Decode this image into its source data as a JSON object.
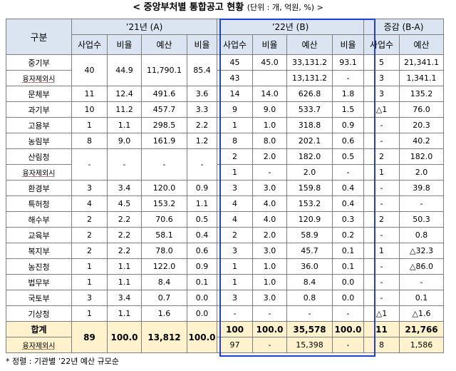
{
  "title": "< 중앙부처별 통합공고 현황",
  "unit": "(단위 : 개, 억원, %) >",
  "headers": {
    "category": "구분",
    "y21": "’21년 (A)",
    "y22": "’22년 (B)",
    "change": "증감 (B-A)",
    "count": "사업수",
    "ratio": "비율",
    "budget": "예산"
  },
  "rows": [
    {
      "name": "중기부",
      "c21": "40",
      "r21": "44.9",
      "b21": "11,790.1",
      "br21": "85.4",
      "c22": "45",
      "r22": "45.0",
      "b22": "33,131.2",
      "br22": "93.1",
      "dc": "5",
      "db": "21,341.1"
    },
    {
      "name": "융자제외시",
      "c22": "43",
      "r22": "",
      "b22": "13,131.2",
      "br22": "-",
      "dc": "3",
      "db": "1,341.1"
    },
    {
      "name": "문체부",
      "c21": "11",
      "r21": "12.4",
      "b21": "491.6",
      "br21": "3.6",
      "c22": "14",
      "r22": "14.0",
      "b22": "626.8",
      "br22": "1.8",
      "dc": "3",
      "db": "135.2"
    },
    {
      "name": "과기부",
      "c21": "10",
      "r21": "11.2",
      "b21": "457.7",
      "br21": "3.3",
      "c22": "9",
      "r22": "9.0",
      "b22": "533.7",
      "br22": "1.5",
      "dc": "△1",
      "db": "76.0"
    },
    {
      "name": "고용부",
      "c21": "1",
      "r21": "1.1",
      "b21": "298.5",
      "br21": "2.2",
      "c22": "1",
      "r22": "1.0",
      "b22": "318.8",
      "br22": "0.9",
      "dc": "-",
      "db": "20.3"
    },
    {
      "name": "농림부",
      "c21": "8",
      "r21": "9.0",
      "b21": "161.9",
      "br21": "1.2",
      "c22": "8",
      "r22": "8.0",
      "b22": "202.1",
      "br22": "0.6",
      "dc": "-",
      "db": "40.2"
    },
    {
      "name": "산림청",
      "c21": "-",
      "r21": "-",
      "b21": "-",
      "br21": "-",
      "c22": "2",
      "r22": "2.0",
      "b22": "182.0",
      "br22": "0.5",
      "dc": "2",
      "db": "182.0"
    },
    {
      "name": "융자제외시",
      "c22": "1",
      "r22": "-",
      "b22": "2.0",
      "br22": "-",
      "dc": "1",
      "db": "2.0"
    },
    {
      "name": "환경부",
      "c21": "3",
      "r21": "3.4",
      "b21": "120.0",
      "br21": "0.9",
      "c22": "3",
      "r22": "3.0",
      "b22": "159.8",
      "br22": "0.4",
      "dc": "-",
      "db": "39.8"
    },
    {
      "name": "특허청",
      "c21": "4",
      "r21": "4.5",
      "b21": "153.2",
      "br21": "1.1",
      "c22": "4",
      "r22": "4.0",
      "b22": "153.2",
      "br22": "0.4",
      "dc": "-",
      "db": "-"
    },
    {
      "name": "해수부",
      "c21": "2",
      "r21": "2.2",
      "b21": "70.6",
      "br21": "0.5",
      "c22": "4",
      "r22": "4.0",
      "b22": "120.9",
      "br22": "0.3",
      "dc": "2",
      "db": "50.3"
    },
    {
      "name": "교육부",
      "c21": "2",
      "r21": "2.2",
      "b21": "58.1",
      "br21": "0.4",
      "c22": "2",
      "r22": "2.0",
      "b22": "58.9",
      "br22": "0.2",
      "dc": "-",
      "db": "0.8"
    },
    {
      "name": "복지부",
      "c21": "2",
      "r21": "2.2",
      "b21": "78.0",
      "br21": "0.6",
      "c22": "3",
      "r22": "3.0",
      "b22": "45.7",
      "br22": "0.1",
      "dc": "1",
      "db": "△32.3"
    },
    {
      "name": "농진청",
      "c21": "1",
      "r21": "1.1",
      "b21": "122.0",
      "br21": "0.9",
      "c22": "1",
      "r22": "1.0",
      "b22": "36.0",
      "br22": "0.1",
      "dc": "-",
      "db": "△86.0"
    },
    {
      "name": "법무부",
      "c21": "1",
      "r21": "1.1",
      "b21": "8.4",
      "br21": "0.1",
      "c22": "1",
      "r22": "1.0",
      "b22": "8.4",
      "br22": "0.0",
      "dc": "-",
      "db": "-"
    },
    {
      "name": "국토부",
      "c21": "3",
      "r21": "3.4",
      "b21": "0.7",
      "br21": "0.0",
      "c22": "3",
      "r22": "3.0",
      "b22": "0.8",
      "br22": "0.0",
      "dc": "-",
      "db": "0.1"
    },
    {
      "name": "기상청",
      "c21": "1",
      "r21": "1.1",
      "b21": "1.6",
      "br21": "0.0",
      "c22": "-",
      "r22": "-",
      "b22": "-",
      "br22": "-",
      "dc": "△1",
      "db": "△1.6"
    }
  ],
  "total": {
    "name": "합계",
    "c21": "89",
    "r21": "100.0",
    "b21": "13,812",
    "br21": "100.0",
    "c22": "100",
    "r22": "100.0",
    "b22": "35,578",
    "br22": "100.0",
    "dc": "11",
    "db": "21,766"
  },
  "total_excl": {
    "name": "융자제외시",
    "c22": "97",
    "r22": "-",
    "b22": "15,398",
    "br22": "-",
    "dc": "8",
    "db": "1,586"
  },
  "footnote": "* 정렬 : 기관별 ’22년 예산 규모순"
}
